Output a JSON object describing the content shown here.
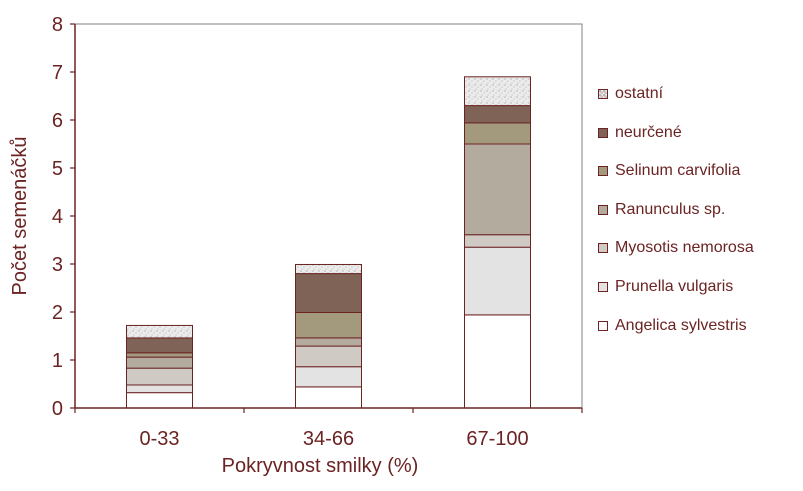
{
  "chart_data": {
    "type": "bar",
    "stacked": true,
    "xlabel": "Pokryvnost smilky (%)",
    "ylabel": "Počet semenáčků",
    "ylim": [
      0,
      8
    ],
    "yticks": [
      "0",
      "1",
      "2",
      "3",
      "4",
      "5",
      "6",
      "7",
      "8"
    ],
    "categories": [
      "0-33",
      "34-66",
      "67-100"
    ],
    "grid": false,
    "legend_position": "right",
    "series": [
      {
        "name": "Angelica sylvestris",
        "color": "#ffffff",
        "pattern": "none",
        "values": [
          0.32,
          0.44,
          1.94
        ]
      },
      {
        "name": "Prunella vulgaris",
        "color": "#e3e3e3",
        "pattern": "none",
        "values": [
          0.16,
          0.42,
          1.41
        ]
      },
      {
        "name": "Myosotis nemorosa",
        "color": "#cfcbc4",
        "pattern": "none",
        "values": [
          0.35,
          0.43,
          0.26
        ]
      },
      {
        "name": "Ranunculus sp.",
        "color": "#b3ab9d",
        "pattern": "none",
        "values": [
          0.23,
          0.17,
          1.89
        ]
      },
      {
        "name": "Selinum carvifolia",
        "color": "#a39a7e",
        "pattern": "none",
        "values": [
          0.09,
          0.53,
          0.44
        ]
      },
      {
        "name": "neurčené",
        "color": "#7f6356",
        "pattern": "none",
        "values": [
          0.31,
          0.81,
          0.36
        ]
      },
      {
        "name": "ostatní",
        "color": "#eeeeee",
        "pattern": "speckle",
        "values": [
          0.26,
          0.19,
          0.6
        ]
      }
    ],
    "legend_order": [
      "ostatní",
      "neurčené",
      "Selinum carvifolia",
      "Ranunculus sp.",
      "Myosotis nemorosa",
      "Prunella vulgaris",
      "Angelica sylvestris"
    ],
    "colors": {
      "axis": "#6b2323",
      "text": "#6b2323",
      "frame": "#808080",
      "outline": "#6b2323"
    }
  }
}
